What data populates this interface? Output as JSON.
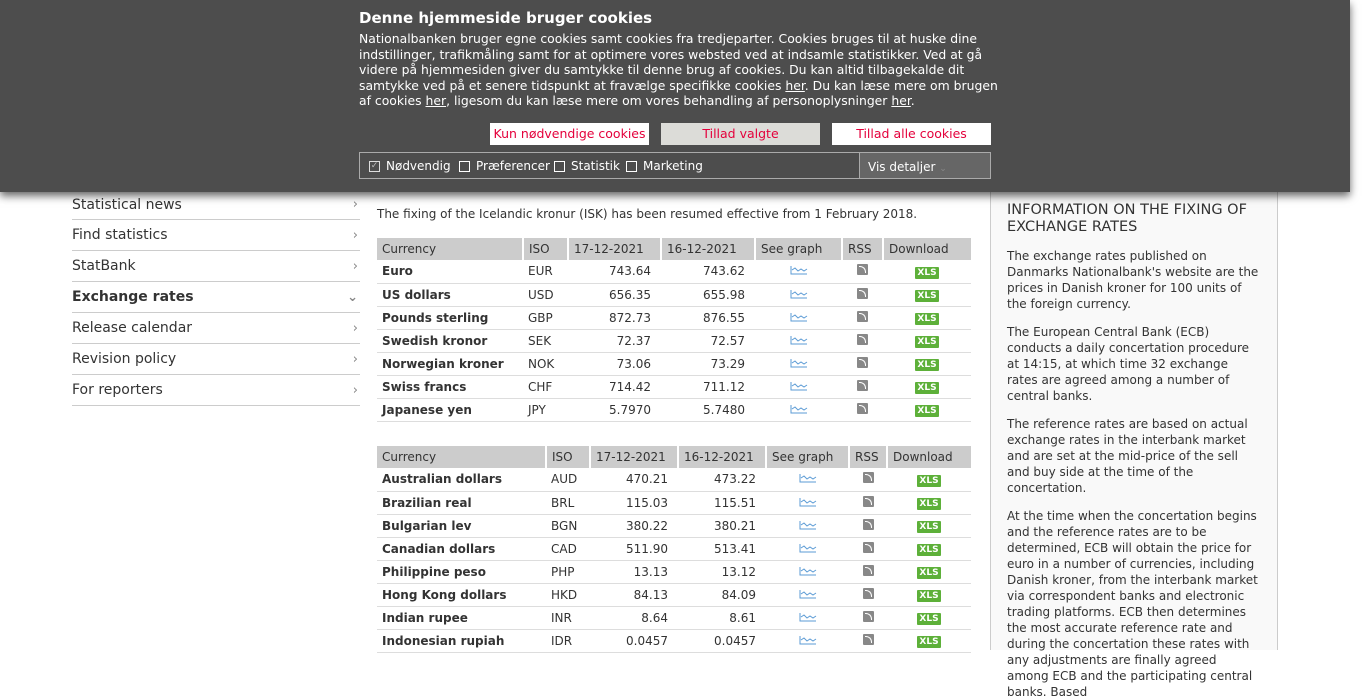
{
  "cookie_banner": {
    "title": "Denne hjemmeside bruger cookies",
    "text_1": "Nationalbanken bruger egne cookies samt cookies fra tredjeparter. Cookies bruges til at huske dine indstillinger, trafikmåling samt for at optimere vores websted ved at indsamle statistikker.  Ved at gå videre på hjemmesiden giver du samtykke til denne brug af cookies.  Du kan altid tilbagekalde dit samtykke ved på et senere tidspunkt at fravælge specifikke cookies ",
    "link_1": "her",
    "text_2": ". Du kan læse mere om brugen af cookies ",
    "link_2": "her",
    "text_3": ", ligesom du kan læse mere om vores behandling af personoplysninger ",
    "link_3": "her",
    "text_4": ".",
    "buttons": {
      "necessary": "Kun nødvendige cookies",
      "selected": "Tillad valgte",
      "all": "Tillad alle cookies"
    },
    "options": [
      {
        "label": "Nødvendig",
        "checked": true
      },
      {
        "label": "Præferencer",
        "checked": false
      },
      {
        "label": "Statistik",
        "checked": false
      },
      {
        "label": "Marketing",
        "checked": false
      }
    ],
    "details": "Vis detaljer"
  },
  "nav": {
    "items": [
      {
        "label": "Statistical news"
      },
      {
        "label": "Find statistics"
      },
      {
        "label": "StatBank"
      },
      {
        "label": "Exchange rates",
        "active": true
      },
      {
        "label": "Release calendar"
      },
      {
        "label": "Revision policy"
      },
      {
        "label": "For reporters"
      }
    ]
  },
  "main": {
    "intro": "The fixing of the Icelandic kronur (ISK) has been resumed effective from 1 February 2018.",
    "headers": [
      "Currency",
      "ISO",
      "17-12-2021",
      "16-12-2021",
      "See graph",
      "RSS",
      "Download"
    ],
    "xls_label": "XLS",
    "table1": [
      [
        "Euro",
        "EUR",
        "743.64",
        "743.62"
      ],
      [
        "US dollars",
        "USD",
        "656.35",
        "655.98"
      ],
      [
        "Pounds sterling",
        "GBP",
        "872.73",
        "876.55"
      ],
      [
        "Swedish kronor",
        "SEK",
        "72.37",
        "72.57"
      ],
      [
        "Norwegian kroner",
        "NOK",
        "73.06",
        "73.29"
      ],
      [
        "Swiss francs",
        "CHF",
        "714.42",
        "711.12"
      ],
      [
        "Japanese yen",
        "JPY",
        "5.7970",
        "5.7480"
      ]
    ],
    "table2": [
      [
        "Australian dollars",
        "AUD",
        "470.21",
        "473.22"
      ],
      [
        "Brazilian real",
        "BRL",
        "115.03",
        "115.51"
      ],
      [
        "Bulgarian lev",
        "BGN",
        "380.22",
        "380.21"
      ],
      [
        "Canadian dollars",
        "CAD",
        "511.90",
        "513.41"
      ],
      [
        "Philippine peso",
        "PHP",
        "13.13",
        "13.12"
      ],
      [
        "Hong Kong dollars",
        "HKD",
        "84.13",
        "84.09"
      ],
      [
        "Indian rupee",
        "INR",
        "8.64",
        "8.61"
      ],
      [
        "Indonesian rupiah",
        "IDR",
        "0.0457",
        "0.0457"
      ]
    ]
  },
  "sidebar": {
    "title": "INFORMATION ON THE FIXING OF EXCHANGE RATES",
    "paragraphs": [
      "The exchange rates published on Danmarks Nationalbank's website are the prices in Danish kroner for 100 units of the foreign currency.",
      "The European Central Bank (ECB) conducts a daily concertation procedure at 14:15, at which time 32 exchange rates are agreed among a number of central banks.",
      "The reference rates are based on actual exchange rates in the interbank market and are set at the mid-price of the sell and buy side at the time of the concertation.",
      "At the time when the concertation begins and the reference rates are to be determined, ECB will obtain the price for euro in a number of currencies, including Danish kroner, from the interbank market via correspondent banks and electronic trading platforms. ECB then determines the most accurate reference rate and during the concertation these rates with any adjustments are finally agreed among ECB and the participating central banks. Based"
    ]
  }
}
